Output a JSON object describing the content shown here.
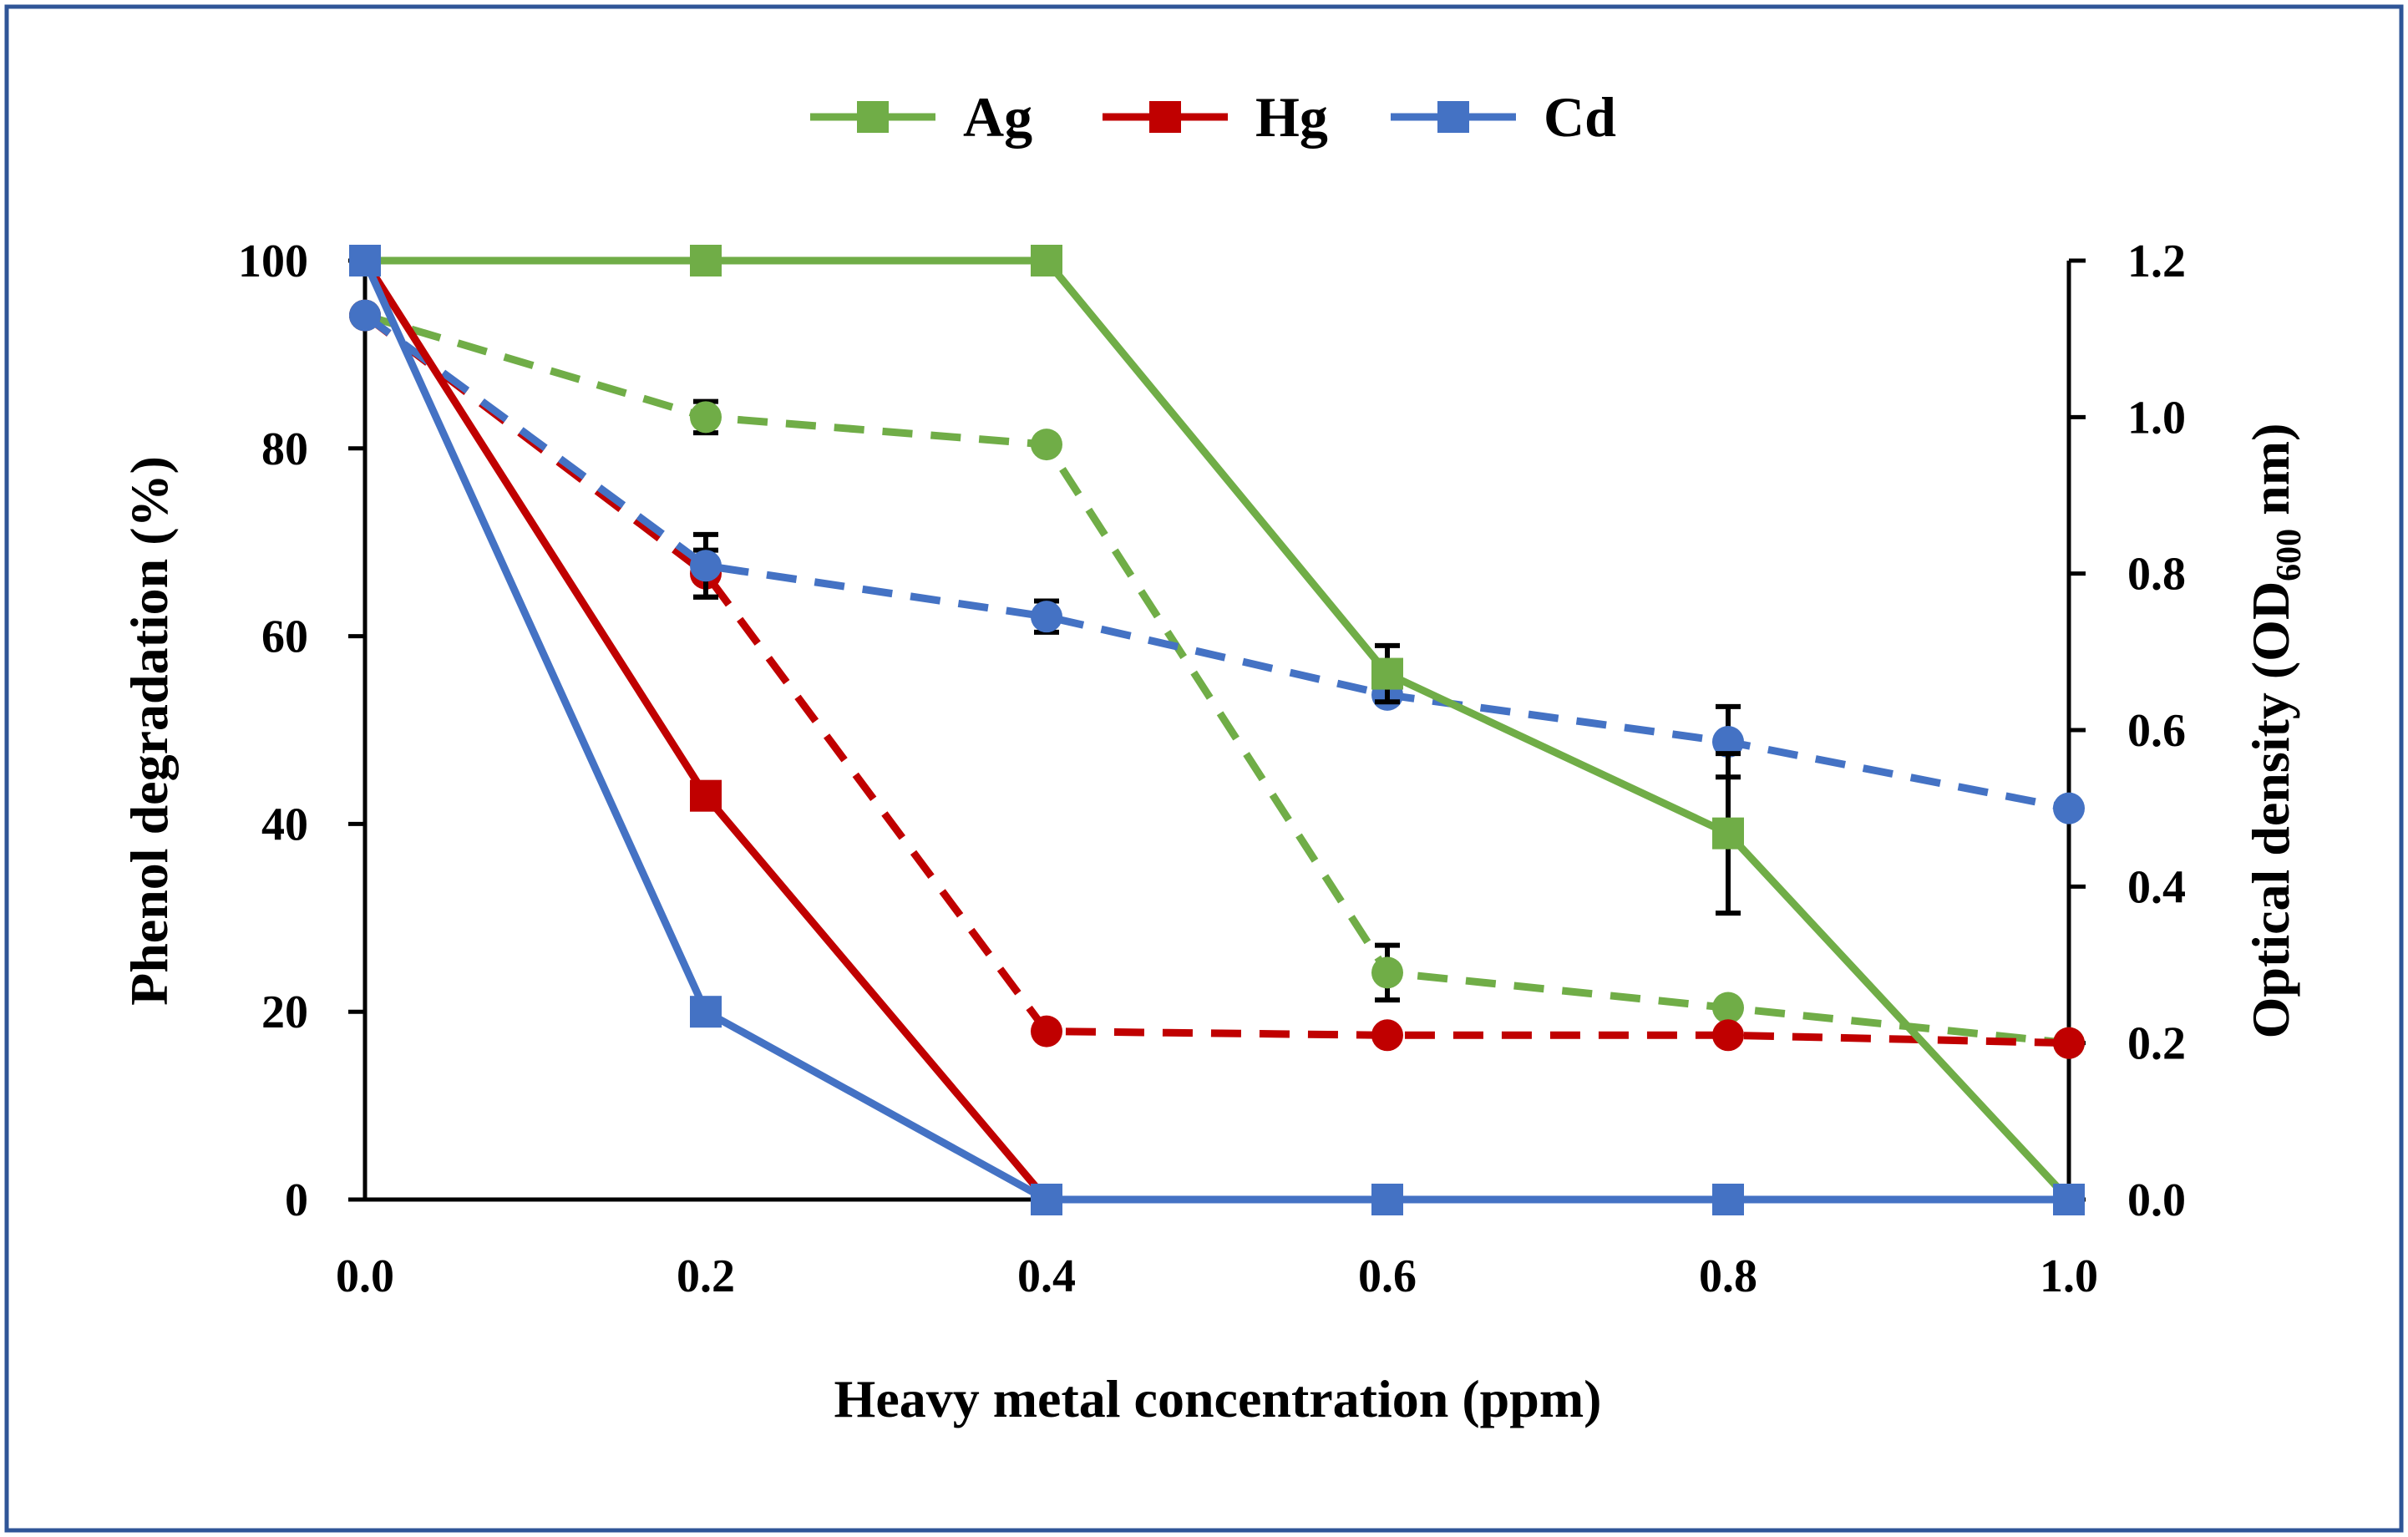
{
  "chart_data": {
    "type": "line",
    "xlabel": "Heavy metal concentration (ppm)",
    "ylabel_left": "Phenol degradation (%)",
    "ylabel_right_prefix": "Optical density (OD",
    "ylabel_right_sub": "600",
    "ylabel_right_suffix": " nm)",
    "x": [
      0.0,
      0.2,
      0.4,
      0.6,
      0.8,
      1.0
    ],
    "x_tick_labels": [
      "0.0",
      "0.2",
      "0.4",
      "0.6",
      "0.8",
      "1.0"
    ],
    "xlim": [
      0.0,
      1.0
    ],
    "ylim_left": [
      0,
      100
    ],
    "y_left_ticks": [
      0,
      20,
      40,
      60,
      80,
      100
    ],
    "y_left_tick_labels": [
      "0",
      "20",
      "40",
      "60",
      "80",
      "100"
    ],
    "ylim_right": [
      0.0,
      1.2
    ],
    "y_right_ticks": [
      0.0,
      0.2,
      0.4,
      0.6,
      0.8,
      1.0,
      1.2
    ],
    "y_right_tick_labels": [
      "0.0",
      "0.2",
      "0.4",
      "0.6",
      "0.8",
      "1.0",
      "1.2"
    ],
    "grid": false,
    "legend_position": "top-center",
    "legend": [
      "Ag",
      "Hg",
      "Cd"
    ],
    "colors": {
      "Ag": "#70ad47",
      "Hg": "#c00000",
      "Cd": "#4472c4",
      "error_bar": "#000000",
      "frame": "#2f5597"
    },
    "series": [
      {
        "metal": "Ag",
        "measure": "phenol degradation",
        "axis": "left",
        "line": "solid",
        "marker": "square",
        "values": [
          100,
          100,
          100,
          56,
          39,
          0
        ],
        "errors": [
          0,
          0,
          0,
          3,
          8.5,
          0
        ]
      },
      {
        "metal": "Hg",
        "measure": "phenol degradation",
        "axis": "left",
        "line": "solid",
        "marker": "square",
        "values": [
          100,
          43,
          0,
          0,
          0,
          0
        ],
        "errors": [
          0,
          0,
          0,
          0,
          0,
          0
        ]
      },
      {
        "metal": "Cd",
        "measure": "phenol degradation",
        "axis": "left",
        "line": "solid",
        "marker": "square",
        "values": [
          100,
          20,
          0,
          0,
          0,
          0
        ],
        "errors": [
          0,
          0,
          0,
          0,
          0,
          0
        ]
      },
      {
        "metal": "Ag",
        "measure": "optical density",
        "axis": "right",
        "line": "dashed",
        "marker": "circle",
        "values": [
          1.13,
          1.0,
          0.965,
          0.29,
          0.245,
          0.2
        ],
        "errors": [
          0,
          0.02,
          0,
          0.035,
          0,
          0
        ]
      },
      {
        "metal": "Hg",
        "measure": "optical density",
        "axis": "right",
        "line": "dashed",
        "marker": "circle",
        "values": [
          1.13,
          0.8,
          0.215,
          0.21,
          0.21,
          0.2
        ],
        "errors": [
          0,
          0.03,
          0,
          0,
          0,
          0
        ]
      },
      {
        "metal": "Cd",
        "measure": "optical density",
        "axis": "right",
        "line": "dashed",
        "marker": "circle",
        "values": [
          1.13,
          0.81,
          0.745,
          0.645,
          0.585,
          0.5
        ],
        "errors": [
          0,
          0.04,
          0.02,
          0,
          0.045,
          0
        ]
      }
    ]
  }
}
